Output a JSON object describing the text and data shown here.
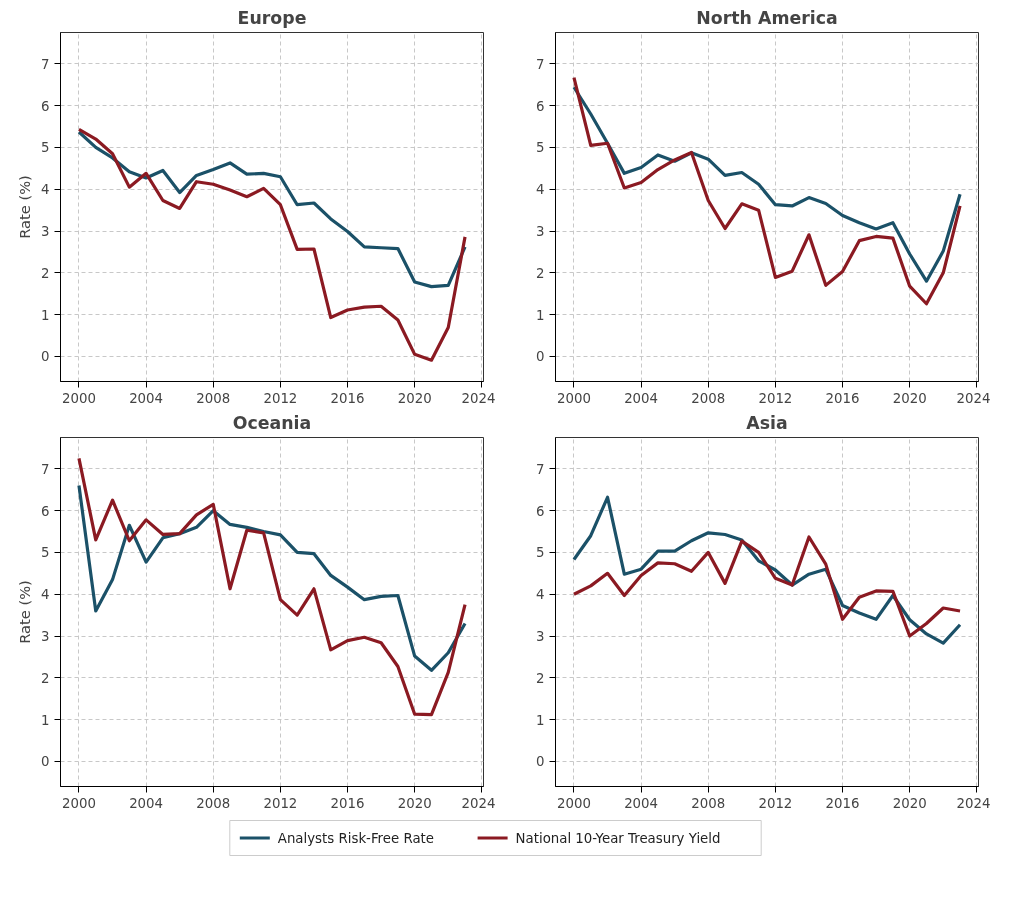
{
  "chart_data": [
    {
      "type": "line",
      "title": "Europe",
      "ylabel": "Rate (%)",
      "x": [
        2000,
        2001,
        2002,
        2003,
        2004,
        2005,
        2006,
        2007,
        2008,
        2009,
        2010,
        2011,
        2012,
        2013,
        2014,
        2015,
        2016,
        2017,
        2018,
        2019,
        2020,
        2021,
        2022,
        2023
      ],
      "xlim": [
        1998.9,
        2024.1
      ],
      "xticks": [
        2000,
        2004,
        2008,
        2012,
        2016,
        2020,
        2024
      ],
      "ylim": [
        -0.6,
        7.75
      ],
      "yticks": [
        0,
        1,
        2,
        3,
        4,
        5,
        6,
        7
      ],
      "grid": true,
      "legend": "bottom",
      "line_style": "solid",
      "series": [
        {
          "name": "Analysts Risk-Free Rate",
          "color": "#1b5168",
          "values": [
            5.37,
            5.0,
            4.75,
            4.42,
            4.27,
            4.45,
            3.92,
            4.33,
            4.47,
            4.63,
            4.36,
            4.38,
            4.3,
            3.63,
            3.67,
            3.29,
            2.99,
            2.62,
            2.6,
            2.58,
            1.78,
            1.67,
            1.7,
            2.62
          ]
        },
        {
          "name": "National 10-Year Treasury Yield",
          "color": "#8b1a22",
          "values": [
            5.43,
            5.2,
            4.85,
            4.05,
            4.38,
            3.73,
            3.54,
            4.18,
            4.12,
            3.98,
            3.82,
            4.02,
            3.63,
            2.56,
            2.57,
            0.93,
            1.11,
            1.18,
            1.2,
            0.87,
            0.05,
            -0.09,
            0.69,
            2.86
          ]
        }
      ]
    },
    {
      "type": "line",
      "title": "North America",
      "x": [
        2000,
        2001,
        2002,
        2003,
        2004,
        2005,
        2006,
        2007,
        2008,
        2009,
        2010,
        2011,
        2012,
        2013,
        2014,
        2015,
        2016,
        2017,
        2018,
        2019,
        2020,
        2021,
        2022,
        2023
      ],
      "xlim": [
        1998.9,
        2024.1
      ],
      "xticks": [
        2000,
        2004,
        2008,
        2012,
        2016,
        2020,
        2024
      ],
      "ylim": [
        -0.6,
        7.75
      ],
      "yticks": [
        0,
        1,
        2,
        3,
        4,
        5,
        6,
        7
      ],
      "grid": true,
      "line_style": "solid",
      "series": [
        {
          "color": "#1b5168",
          "values": [
            6.44,
            5.8,
            5.1,
            4.38,
            4.52,
            4.82,
            4.67,
            4.87,
            4.72,
            4.33,
            4.4,
            4.12,
            3.63,
            3.6,
            3.8,
            3.66,
            3.37,
            3.2,
            3.05,
            3.2,
            2.45,
            1.8,
            2.52,
            3.88
          ]
        },
        {
          "color": "#8b1a22",
          "values": [
            6.67,
            5.05,
            5.1,
            4.03,
            4.16,
            4.47,
            4.7,
            4.88,
            3.73,
            3.06,
            3.65,
            3.5,
            1.89,
            2.04,
            2.91,
            1.7,
            2.03,
            2.77,
            2.87,
            2.83,
            1.68,
            1.26,
            2.0,
            3.6
          ]
        }
      ]
    },
    {
      "type": "line",
      "title": "Oceania",
      "ylabel": "Rate (%)",
      "x": [
        2000,
        2001,
        2002,
        2003,
        2004,
        2005,
        2006,
        2007,
        2008,
        2009,
        2010,
        2011,
        2012,
        2013,
        2014,
        2015,
        2016,
        2017,
        2018,
        2019,
        2020,
        2021,
        2022,
        2023
      ],
      "xlim": [
        1998.9,
        2024.1
      ],
      "xticks": [
        2000,
        2004,
        2008,
        2012,
        2016,
        2020,
        2024
      ],
      "ylim": [
        -0.6,
        7.75
      ],
      "yticks": [
        0,
        1,
        2,
        3,
        4,
        5,
        6,
        7
      ],
      "grid": true,
      "line_style": "solid",
      "series": [
        {
          "color": "#1b5168",
          "values": [
            6.6,
            3.6,
            4.35,
            5.65,
            4.77,
            5.35,
            5.45,
            5.6,
            6.0,
            5.67,
            5.6,
            5.5,
            5.42,
            5.0,
            4.97,
            4.45,
            4.17,
            3.87,
            3.95,
            3.97,
            2.52,
            2.18,
            2.6,
            3.3
          ]
        },
        {
          "color": "#8b1a22",
          "values": [
            7.25,
            5.3,
            6.25,
            5.28,
            5.78,
            5.43,
            5.45,
            5.9,
            6.15,
            4.13,
            5.53,
            5.47,
            3.87,
            3.5,
            4.13,
            2.67,
            2.89,
            2.97,
            2.84,
            2.27,
            1.13,
            1.12,
            2.13,
            3.75
          ]
        }
      ]
    },
    {
      "type": "line",
      "title": "Asia",
      "x": [
        2000,
        2001,
        2002,
        2003,
        2004,
        2005,
        2006,
        2007,
        2008,
        2009,
        2010,
        2011,
        2012,
        2013,
        2014,
        2015,
        2016,
        2017,
        2018,
        2019,
        2020,
        2021,
        2022,
        2023
      ],
      "xlim": [
        1998.9,
        2024.1
      ],
      "xticks": [
        2000,
        2004,
        2008,
        2012,
        2016,
        2020,
        2024
      ],
      "ylim": [
        -0.6,
        7.75
      ],
      "yticks": [
        0,
        1,
        2,
        3,
        4,
        5,
        6,
        7
      ],
      "grid": true,
      "line_style": "solid",
      "series": [
        {
          "color": "#1b5168",
          "values": [
            4.83,
            5.4,
            6.32,
            4.48,
            4.6,
            5.03,
            5.03,
            5.28,
            5.47,
            5.43,
            5.3,
            4.8,
            4.58,
            4.22,
            4.48,
            4.6,
            3.73,
            3.55,
            3.4,
            3.97,
            3.39,
            3.05,
            2.83,
            3.27
          ]
        },
        {
          "color": "#8b1a22",
          "values": [
            4.0,
            4.2,
            4.5,
            3.97,
            4.45,
            4.75,
            4.73,
            4.55,
            5.0,
            4.26,
            5.27,
            5.0,
            4.38,
            4.22,
            5.37,
            4.72,
            3.4,
            3.93,
            4.08,
            4.07,
            3.0,
            3.3,
            3.67,
            3.6
          ]
        }
      ]
    }
  ]
}
